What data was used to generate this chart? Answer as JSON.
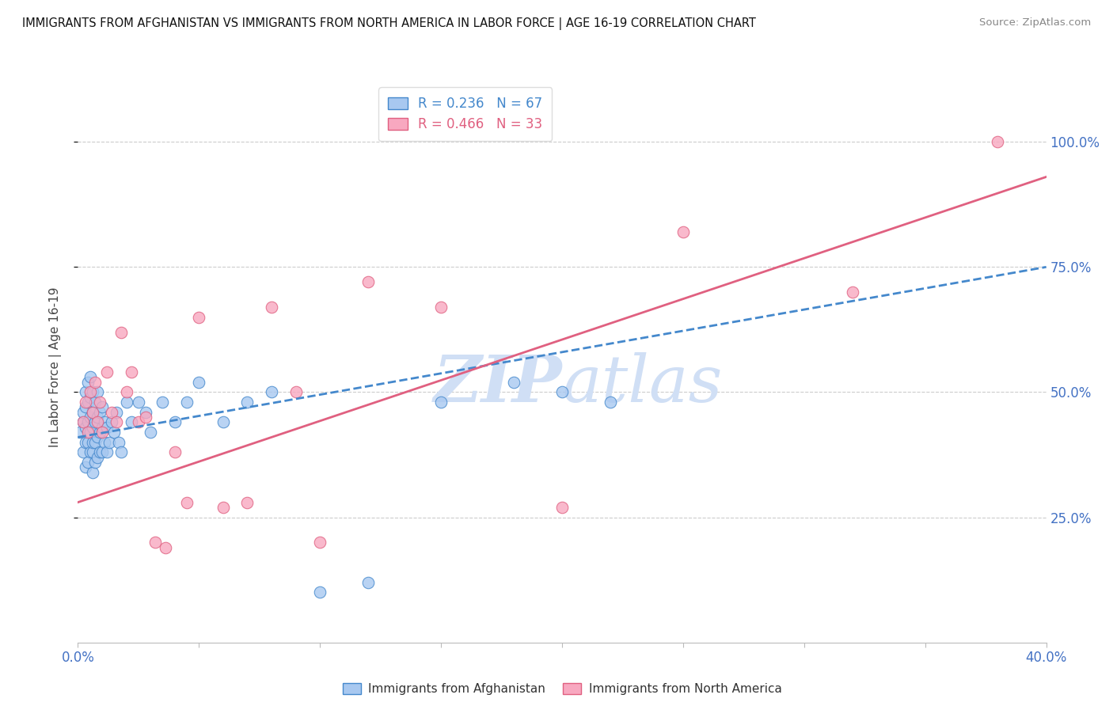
{
  "title": "IMMIGRANTS FROM AFGHANISTAN VS IMMIGRANTS FROM NORTH AMERICA IN LABOR FORCE | AGE 16-19 CORRELATION CHART",
  "source": "Source: ZipAtlas.com",
  "ylabel": "In Labor Force | Age 16-19",
  "ytick_labels": [
    "100.0%",
    "75.0%",
    "50.0%",
    "25.0%"
  ],
  "ytick_positions": [
    1.0,
    0.75,
    0.5,
    0.25
  ],
  "legend1_label": "Immigrants from Afghanistan",
  "legend2_label": "Immigrants from North America",
  "R1": 0.236,
  "N1": 67,
  "R2": 0.466,
  "N2": 33,
  "color_blue": "#a8c8f0",
  "color_pink": "#f8a8c0",
  "color_trend_blue": "#4488cc",
  "color_trend_pink": "#e06080",
  "color_axis_label": "#4472c4",
  "color_title": "#111111",
  "watermark_color": "#d0dff5",
  "afghanistan_x": [
    0.001,
    0.002,
    0.002,
    0.002,
    0.003,
    0.003,
    0.003,
    0.003,
    0.003,
    0.004,
    0.004,
    0.004,
    0.004,
    0.004,
    0.005,
    0.005,
    0.005,
    0.005,
    0.005,
    0.006,
    0.006,
    0.006,
    0.006,
    0.006,
    0.006,
    0.007,
    0.007,
    0.007,
    0.007,
    0.008,
    0.008,
    0.008,
    0.008,
    0.009,
    0.009,
    0.009,
    0.01,
    0.01,
    0.01,
    0.011,
    0.011,
    0.012,
    0.012,
    0.013,
    0.014,
    0.015,
    0.016,
    0.017,
    0.018,
    0.02,
    0.022,
    0.025,
    0.028,
    0.03,
    0.035,
    0.04,
    0.045,
    0.05,
    0.06,
    0.07,
    0.08,
    0.1,
    0.12,
    0.15,
    0.18,
    0.2,
    0.22
  ],
  "afghanistan_y": [
    0.42,
    0.38,
    0.44,
    0.46,
    0.35,
    0.4,
    0.43,
    0.47,
    0.5,
    0.36,
    0.4,
    0.44,
    0.48,
    0.52,
    0.38,
    0.42,
    0.45,
    0.49,
    0.53,
    0.34,
    0.38,
    0.4,
    0.43,
    0.46,
    0.5,
    0.36,
    0.4,
    0.44,
    0.48,
    0.37,
    0.41,
    0.45,
    0.5,
    0.38,
    0.42,
    0.46,
    0.38,
    0.43,
    0.47,
    0.4,
    0.44,
    0.38,
    0.43,
    0.4,
    0.44,
    0.42,
    0.46,
    0.4,
    0.38,
    0.48,
    0.44,
    0.48,
    0.46,
    0.42,
    0.48,
    0.44,
    0.48,
    0.52,
    0.44,
    0.48,
    0.5,
    0.1,
    0.12,
    0.48,
    0.52,
    0.5,
    0.48
  ],
  "north_america_x": [
    0.002,
    0.003,
    0.004,
    0.005,
    0.006,
    0.007,
    0.008,
    0.009,
    0.01,
    0.012,
    0.014,
    0.016,
    0.018,
    0.02,
    0.022,
    0.025,
    0.028,
    0.032,
    0.036,
    0.04,
    0.045,
    0.05,
    0.06,
    0.07,
    0.08,
    0.09,
    0.1,
    0.12,
    0.15,
    0.2,
    0.25,
    0.32,
    0.38
  ],
  "north_america_y": [
    0.44,
    0.48,
    0.42,
    0.5,
    0.46,
    0.52,
    0.44,
    0.48,
    0.42,
    0.54,
    0.46,
    0.44,
    0.62,
    0.5,
    0.54,
    0.44,
    0.45,
    0.2,
    0.19,
    0.38,
    0.28,
    0.65,
    0.27,
    0.28,
    0.67,
    0.5,
    0.2,
    0.72,
    0.67,
    0.27,
    0.82,
    0.7,
    1.0
  ],
  "xlim": [
    0.0,
    0.4
  ],
  "ylim": [
    0.0,
    1.1
  ],
  "trend_blue_y0": 0.41,
  "trend_blue_y1": 0.75,
  "trend_pink_y0": 0.28,
  "trend_pink_y1": 0.93
}
